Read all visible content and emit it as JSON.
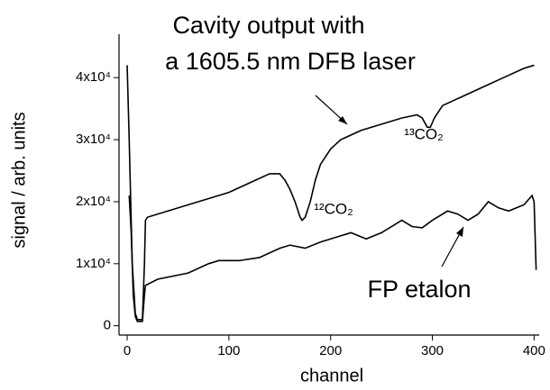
{
  "chart_data": {
    "type": "line",
    "annotations": [
      "Cavity output with",
      "a 1605.5 nm DFB laser",
      "FP etalon",
      "¹³CO₂",
      "¹²CO₂"
    ],
    "x_label": "channel",
    "y_label": "signal / arb. units",
    "xlim": [
      -8,
      405
    ],
    "ylim": [
      -1500,
      47000
    ],
    "xticks": [
      0,
      100,
      200,
      300,
      400
    ],
    "yticks": [
      {
        "value": 0,
        "label": "0"
      },
      {
        "value": 10000,
        "label": "1x10⁴"
      },
      {
        "value": 20000,
        "label": "2x10⁴"
      },
      {
        "value": 30000,
        "label": "3x10⁴"
      },
      {
        "value": 40000,
        "label": "4x10⁴"
      }
    ],
    "series": [
      {
        "color": "#000000",
        "x": [
          0,
          2,
          5,
          8,
          10,
          15,
          17,
          18,
          20,
          40,
          60,
          80,
          100,
          120,
          140,
          150,
          155,
          160,
          165,
          170,
          172,
          175,
          180,
          185,
          190,
          200,
          210,
          230,
          250,
          270,
          285,
          290,
          295,
          298,
          302,
          310,
          330,
          350,
          370,
          390,
          400
        ],
        "values": [
          42000,
          30000,
          10000,
          2000,
          1000,
          1000,
          10000,
          17000,
          17500,
          18500,
          19500,
          20500,
          21500,
          23000,
          24500,
          24500,
          23500,
          22000,
          20000,
          17500,
          17000,
          17500,
          20000,
          23500,
          26000,
          28500,
          30000,
          31500,
          32500,
          33500,
          34000,
          33500,
          32000,
          32000,
          33500,
          35500,
          37000,
          38500,
          40000,
          41500,
          42000
        ]
      },
      {
        "color": "#000000",
        "x": [
          2,
          4,
          6,
          8,
          10,
          15,
          17,
          18,
          30,
          60,
          80,
          90,
          110,
          130,
          150,
          160,
          175,
          190,
          200,
          220,
          235,
          250,
          255,
          270,
          280,
          290,
          300,
          315,
          325,
          335,
          345,
          355,
          365,
          375,
          390,
          398,
          400,
          402
        ],
        "values": [
          21000,
          15000,
          5000,
          1500,
          700,
          700,
          5000,
          6500,
          7500,
          8500,
          10000,
          10500,
          10500,
          11000,
          12500,
          13000,
          12500,
          13500,
          14000,
          15000,
          14000,
          15000,
          15500,
          17000,
          16000,
          15800,
          17000,
          18500,
          18000,
          17000,
          18000,
          20000,
          19000,
          18500,
          19500,
          21000,
          20000,
          9000
        ]
      }
    ]
  }
}
